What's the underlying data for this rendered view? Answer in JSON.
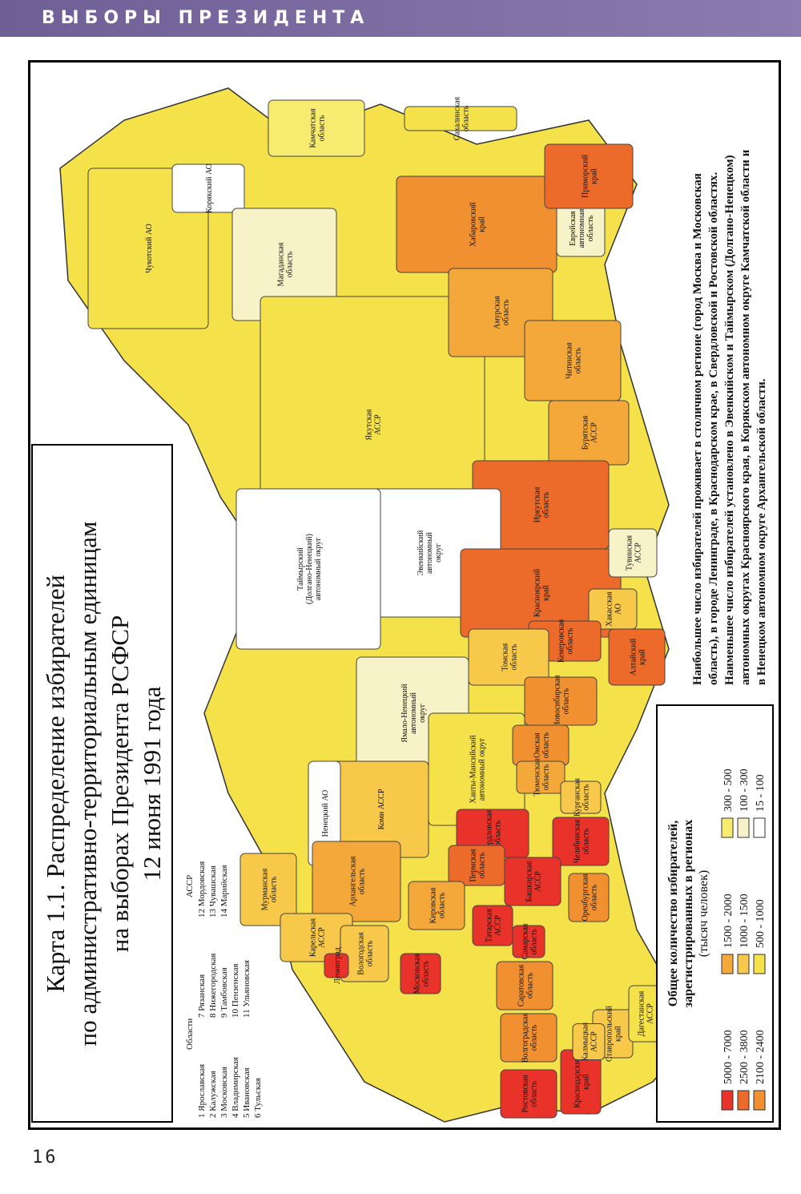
{
  "header": {
    "title": "ВЫБОРЫ ПРЕЗИДЕНТА"
  },
  "page_number": "16",
  "map": {
    "title_lines": [
      "Карта 1.1. Распределение избирателей",
      "по административно-территориальным единицам",
      "на выборах Президента РСФСР",
      "12 июня 1991 года"
    ],
    "key": {
      "oblasti_heading": "Области",
      "assr_heading": "АССР",
      "oblasti": [
        "1 Ярославская",
        "2 Калужская",
        "3 Московская",
        "4 Владимирская",
        "5 Ивановская",
        "6 Тульская",
        "7 Рязанская",
        "8 Нижегородская",
        "9 Тамбовская",
        "10 Пензенская",
        "11 Ульяновская"
      ],
      "assr": [
        "12 Мордовская",
        "13 Чувашская",
        "14 Марийская"
      ]
    },
    "legend": {
      "title_lines": [
        "Общее количество избирателей,",
        "зарегистрированных в регионах",
        "(тысяч человек)"
      ],
      "items": [
        {
          "label": "5000 - 7000",
          "color": "#e8322a"
        },
        {
          "label": "2500 - 3800",
          "color": "#ec6a2a"
        },
        {
          "label": "2100 - 2400",
          "color": "#f09030"
        },
        {
          "label": "1500 - 2000",
          "color": "#f4a83a"
        },
        {
          "label": "1000 - 1500",
          "color": "#f7c84a"
        },
        {
          "label": "500 - 1000",
          "color": "#f5e24a"
        },
        {
          "label": "300 - 500",
          "color": "#f8ec70"
        },
        {
          "label": "100 - 300",
          "color": "#f8f2c8"
        },
        {
          "label": "15 - 100",
          "color": "#ffffff"
        }
      ]
    },
    "note_lines": [
      "Наибольшее число избирателей проживает в столичном регионе (город Москва и Московская",
      "область), в городе Ленинграде, в Краснодарском крае, в Свердловской и Ростовской областях.",
      "Наименьшее число избирателей установлено в Эвенкийском и Таймырском (Долгано-Ненецком)",
      "автономных округах Красноярского края, в Корякском автономном округе Камчатской области и",
      "в Ненецком автономном округе Архангельской области."
    ],
    "regions": [
      {
        "label": [
          "Чукотский АО"
        ],
        "color": "#f5e24a"
      },
      {
        "label": [
          "Корякский АО"
        ],
        "color": "#ffffff"
      },
      {
        "label": [
          "Камчатская",
          "область"
        ],
        "color": "#f8ec70"
      },
      {
        "label": [
          "Магаданская",
          "область"
        ],
        "color": "#f8f2c8"
      },
      {
        "label": [
          "Якутская",
          "АССР"
        ],
        "color": "#f5e24a"
      },
      {
        "label": [
          "Сахалинская",
          "область"
        ],
        "color": "#f5e24a"
      },
      {
        "label": [
          "Хабаровский",
          "край"
        ],
        "color": "#f09030"
      },
      {
        "label": [
          "Амурская",
          "область"
        ],
        "color": "#f4a83a"
      },
      {
        "label": [
          "Еврейская",
          "автономная",
          "область"
        ],
        "color": "#f8f2c8"
      },
      {
        "label": [
          "Приморский",
          "край"
        ],
        "color": "#ec6a2a"
      },
      {
        "label": [
          "Читинская",
          "область"
        ],
        "color": "#f4a83a"
      },
      {
        "label": [
          "Бурятская",
          "АССР"
        ],
        "color": "#f4a83a"
      },
      {
        "label": [
          "Иркутская",
          "область"
        ],
        "color": "#ec6a2a"
      },
      {
        "label": [
          "Эвенкийский",
          "автономный",
          "округ"
        ],
        "color": "#ffffff"
      },
      {
        "label": [
          "Таймырский",
          "(Долгано-Ненецкий)",
          "автономный округ"
        ],
        "color": "#ffffff"
      },
      {
        "label": [
          "Красноярский",
          "край"
        ],
        "color": "#ec6a2a"
      },
      {
        "label": [
          "Тувинская",
          "АССР"
        ],
        "color": "#f8f2c8"
      },
      {
        "label": [
          "Хакасская",
          "АО"
        ],
        "color": "#f7c84a"
      },
      {
        "label": [
          "Кемеровская",
          "область"
        ],
        "color": "#ec6a2a"
      },
      {
        "label": [
          "Томская",
          "область"
        ],
        "color": "#f7c84a"
      },
      {
        "label": [
          "Алтайский",
          "край"
        ],
        "color": "#ec6a2a"
      },
      {
        "label": [
          "Новосибирская",
          "область"
        ],
        "color": "#f09030"
      },
      {
        "label": [
          "Ямало-Ненецкий",
          "автономный",
          "округ"
        ],
        "color": "#f8f2c8"
      },
      {
        "label": [
          "Ханты-Мансийский",
          "автономный округ"
        ],
        "color": "#f5e24a"
      },
      {
        "label": [
          "Омская",
          "область"
        ],
        "color": "#f09030"
      },
      {
        "label": [
          "Тюменская",
          "область"
        ],
        "color": "#f4a83a"
      },
      {
        "label": [
          "Курганская",
          "область"
        ],
        "color": "#f7c84a"
      },
      {
        "label": [
          "Свердловская",
          "область"
        ],
        "color": "#e8322a"
      },
      {
        "label": [
          "Челябинская",
          "область"
        ],
        "color": "#e8322a"
      },
      {
        "label": [
          "Пермская",
          "область"
        ],
        "color": "#ec6a2a"
      },
      {
        "label": [
          "Коми АССР"
        ],
        "color": "#f7c84a"
      },
      {
        "label": [
          "Ненецкий АО"
        ],
        "color": "#ffffff"
      },
      {
        "label": [
          "Архангельская",
          "область"
        ],
        "color": "#f4a83a"
      },
      {
        "label": [
          "Мурманская",
          "область"
        ],
        "color": "#f7c84a"
      },
      {
        "label": [
          "Карельская",
          "АССР"
        ],
        "color": "#f7c84a"
      },
      {
        "label": [
          "Башкирская",
          "АССР"
        ],
        "color": "#e8322a"
      },
      {
        "label": [
          "Оренбургская",
          "область"
        ],
        "color": "#f09030"
      },
      {
        "label": [
          "Кировская",
          "область"
        ],
        "color": "#f4a83a"
      },
      {
        "label": [
          "Татарская",
          "АССР"
        ],
        "color": "#e8322a"
      },
      {
        "label": [
          "Самарская",
          "область"
        ],
        "color": "#e8322a"
      },
      {
        "label": [
          "Саратовская",
          "область"
        ],
        "color": "#f09030"
      },
      {
        "label": [
          "Волгоградская",
          "область"
        ],
        "color": "#f09030"
      },
      {
        "label": [
          "Ростовская",
          "область"
        ],
        "color": "#e8322a"
      },
      {
        "label": [
          "Краснодарский",
          "край"
        ],
        "color": "#e8322a"
      },
      {
        "label": [
          "Ставропольский",
          "край"
        ],
        "color": "#f7c84a"
      },
      {
        "label": [
          "Дагестанская",
          "АССР"
        ],
        "color": "#f5e24a"
      },
      {
        "label": [
          "Вологодская",
          "область"
        ],
        "color": "#f7c84a"
      },
      {
        "label": [
          "Московская",
          "область"
        ],
        "color": "#e8322a"
      },
      {
        "label": [
          "Ленинград"
        ],
        "color": "#e8322a"
      },
      {
        "label": [
          "Калмыцкая",
          "АССР"
        ],
        "color": "#f7c84a"
      }
    ]
  }
}
